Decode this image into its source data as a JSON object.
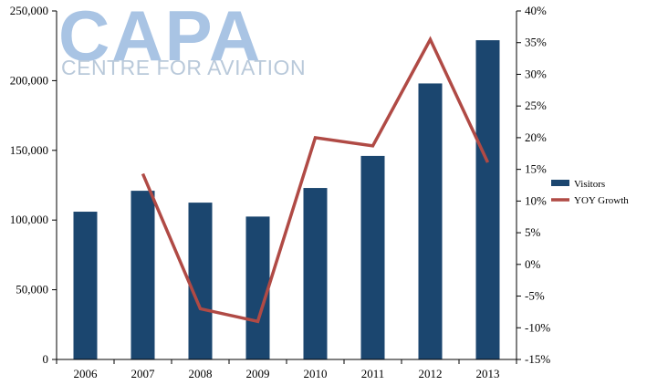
{
  "logo": {
    "main": "CAPA",
    "sub": "CENTRE FOR AVIATION"
  },
  "colors": {
    "bars": "#1b466f",
    "line": "#b04a45",
    "axis": "#000000",
    "logo": "#a9c4e4"
  },
  "chart_data": {
    "type": "bar",
    "categories": [
      "2006",
      "2007",
      "2008",
      "2009",
      "2010",
      "2011",
      "2012",
      "2013"
    ],
    "series": [
      {
        "name": "Visitors",
        "type": "bar",
        "axis": "left",
        "values": [
          106000,
          121000,
          112500,
          102500,
          123000,
          146000,
          198000,
          229000
        ]
      },
      {
        "name": "YOY Growth",
        "type": "line",
        "axis": "right",
        "values": [
          null,
          14.3,
          -7.0,
          -9.0,
          20.0,
          18.7,
          35.5,
          16.1
        ]
      }
    ],
    "y_left": {
      "min": 0,
      "max": 250000,
      "step": 50000,
      "tick_labels": [
        "0",
        "50,000",
        "100,000",
        "150,000",
        "200,000",
        "250,000"
      ]
    },
    "y_right": {
      "min": -15,
      "max": 40,
      "step": 5,
      "tick_labels": [
        "-15%",
        "-10%",
        "-5%",
        "0%",
        "5%",
        "10%",
        "15%",
        "20%",
        "25%",
        "30%",
        "35%",
        "40%"
      ]
    },
    "legend_position": "right",
    "grid": false
  }
}
